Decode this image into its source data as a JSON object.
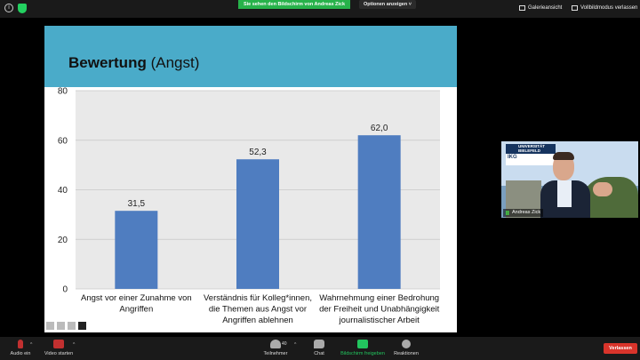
{
  "topbar": {
    "share_banner": "Sie sehen den Bildschirm von Andreas Zick",
    "view_options": "Optionen anzeigen ˅",
    "gallery_view": "Galerieansicht",
    "exit_fullscreen": "Vollbildmodus verlassen"
  },
  "slide": {
    "title_bold": "Bewertung",
    "title_rest": " (Angst)",
    "chart_data": {
      "type": "bar",
      "categories": [
        [
          "Angst vor einer Zunahme von",
          "Angriffen"
        ],
        [
          "Verständnis für Kolleg*innen,",
          "die Themen aus Angst vor",
          "Angriffen ablehnen"
        ],
        [
          "Wahrnehmung einer Bedrohung",
          "der Freiheit und Unabhängigkeit",
          "journalistischer Arbeit"
        ]
      ],
      "values": [
        31.5,
        52.3,
        62.0
      ],
      "value_labels": [
        "31,5",
        "52,3",
        "62,0"
      ],
      "ylim": [
        0,
        80
      ],
      "yticks": [
        0,
        20,
        40,
        60,
        80
      ],
      "grid": true,
      "bar_color": "#4f7dc0",
      "plot_bg": "#e9e9e9"
    }
  },
  "video": {
    "participant_name": "Andreas Zick",
    "logo_top": "UNIVERSITÄT BIELEFELD",
    "logo_ikg": "IKG"
  },
  "toolbar": {
    "audio": "Audio ein",
    "video": "Video starten",
    "participants": "Teilnehmer",
    "participants_count": "40",
    "chat": "Chat",
    "share": "Bildschirm freigeben",
    "reactions": "Reaktionen",
    "leave": "Verlassen"
  }
}
